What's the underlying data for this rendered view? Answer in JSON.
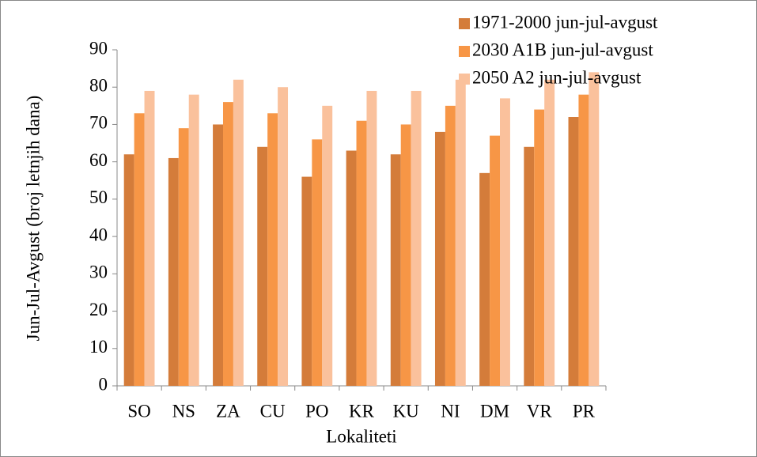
{
  "chart_data": {
    "type": "bar",
    "x_label": "Lokaliteti",
    "y_label": "Jun-Jul-Avgust (broj letnjih dana)",
    "categories": [
      "SO",
      "NS",
      "ZA",
      "CU",
      "PO",
      "KR",
      "KU",
      "NI",
      "DM",
      "VR",
      "PR"
    ],
    "series": [
      {
        "name": "1971-2000 jun-jul-avgust",
        "color": "#d47c3a",
        "values": [
          62,
          61,
          70,
          64,
          56,
          63,
          62,
          68,
          57,
          64,
          72
        ]
      },
      {
        "name": "2030 A1B jun-jul-avgust",
        "color": "#f79646",
        "values": [
          73,
          69,
          76,
          73,
          66,
          71,
          70,
          75,
          67,
          74,
          78
        ]
      },
      {
        "name": "2050 A2 jun-jul-avgust",
        "color": "#fac19c",
        "values": [
          79,
          78,
          82,
          80,
          75,
          79,
          79,
          82,
          77,
          82,
          84
        ]
      }
    ],
    "ylim": [
      0,
      90
    ],
    "yticks": [
      0,
      10,
      20,
      30,
      40,
      50,
      60,
      70,
      80,
      90
    ],
    "grid": false,
    "legend": "top-right"
  }
}
